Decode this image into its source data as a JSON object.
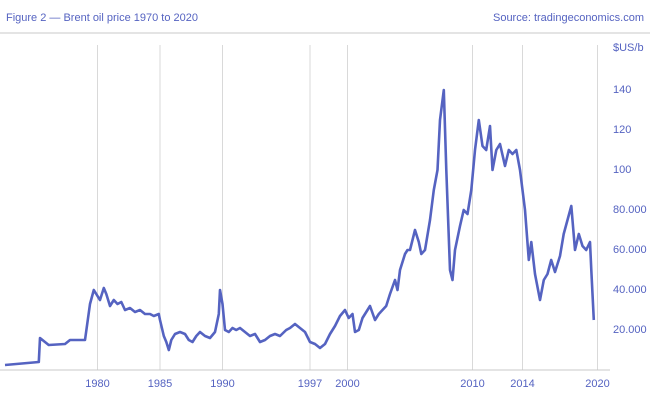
{
  "chart_data": {
    "type": "line",
    "title": "Figure 2 — Brent oil price 1970 to 2020",
    "source": "Source: tradingeconomics.com",
    "y_label": "$US/b",
    "xlim": [
      1972.6,
      2021
    ],
    "xticks": [
      1980,
      1985,
      1990,
      1997,
      2000,
      2010,
      2014,
      2020
    ],
    "ylim": [
      0,
      162.5
    ],
    "yticks": [
      {
        "value": 20,
        "label": "20.000"
      },
      {
        "value": 40,
        "label": "40.000"
      },
      {
        "value": 60,
        "label": "60.000"
      },
      {
        "value": 80,
        "label": "80.000"
      },
      100,
      120,
      140
    ],
    "grid": true,
    "series": [
      {
        "name": "Brent",
        "color": "#5563c1",
        "x": [
          1972.6,
          1975.3,
          1975.4,
          1976.1,
          1977.4,
          1977.8,
          1979.0,
          1979.4,
          1979.7,
          1980.0,
          1980.2,
          1980.5,
          1980.7,
          1981.0,
          1981.3,
          1981.6,
          1981.9,
          1982.2,
          1982.6,
          1983.0,
          1983.4,
          1983.8,
          1984.2,
          1984.5,
          1984.9,
          1985.0,
          1985.3,
          1985.5,
          1985.7,
          1985.9,
          1986.2,
          1986.6,
          1987.0,
          1987.3,
          1987.6,
          1987.9,
          1988.2,
          1988.6,
          1989.0,
          1989.4,
          1989.7,
          1989.8,
          1990.0,
          1990.2,
          1990.5,
          1990.8,
          1991.1,
          1991.4,
          1991.8,
          1992.2,
          1992.6,
          1993.0,
          1993.4,
          1993.8,
          1994.2,
          1994.6,
          1995.1,
          1995.4,
          1995.8,
          1996.2,
          1996.6,
          1997.0,
          1997.4,
          1997.8,
          1998.2,
          1998.6,
          1999.0,
          1999.4,
          1999.8,
          2000.1,
          2000.4,
          2000.6,
          2000.9,
          2001.2,
          2001.4,
          2001.8,
          2002.2,
          2002.5,
          2002.8,
          2003.1,
          2003.4,
          2003.8,
          2004.0,
          2004.2,
          2004.6,
          2004.8,
          2005.0,
          2005.4,
          2005.7,
          2005.9,
          2006.2,
          2006.6,
          2006.9,
          2007.2,
          2007.4,
          2007.7,
          2007.9,
          2008.2,
          2008.4,
          2008.6,
          2009.0,
          2009.3,
          2009.6,
          2009.9,
          2010.2,
          2010.5,
          2010.8,
          2011.1,
          2011.4,
          2011.6,
          2011.9,
          2012.2,
          2012.6,
          2012.9,
          2013.2,
          2013.5,
          2013.8,
          2014.2,
          2014.5,
          2014.7,
          2015.0,
          2015.4,
          2015.7,
          2016.0,
          2016.3,
          2016.6,
          2017.0,
          2017.3,
          2017.6,
          2017.9,
          2018.2,
          2018.5,
          2018.8,
          2019.1,
          2019.4,
          2019.5,
          2019.7
        ],
        "values": [
          2.5,
          4,
          16,
          12.5,
          13,
          15,
          15,
          33,
          40,
          37,
          35,
          41,
          38,
          32,
          35,
          33,
          34,
          30,
          31,
          29,
          30,
          28,
          28,
          27,
          28,
          25,
          17,
          14,
          10,
          15,
          18,
          19,
          18,
          15,
          14,
          17,
          19,
          17,
          16,
          19,
          28,
          40,
          33,
          20,
          19,
          21,
          20,
          21,
          19,
          17,
          18,
          14,
          15,
          17,
          18,
          17,
          20,
          21,
          23,
          21,
          19,
          14,
          13,
          11,
          13,
          18,
          22,
          27,
          30,
          26,
          28,
          19,
          20,
          26,
          28,
          32,
          25,
          28,
          30,
          32,
          38,
          45,
          40,
          50,
          58,
          60,
          60,
          70,
          64,
          58,
          60,
          75,
          90,
          100,
          125,
          140,
          100,
          50,
          45,
          60,
          72,
          80,
          78,
          90,
          110,
          125,
          112,
          110,
          122,
          100,
          110,
          113,
          102,
          110,
          108,
          110,
          100,
          80,
          55,
          64,
          48,
          35,
          45,
          48,
          55,
          49,
          57,
          68,
          75,
          82,
          60,
          68,
          62,
          60,
          64,
          50,
          25
        ]
      }
    ]
  }
}
